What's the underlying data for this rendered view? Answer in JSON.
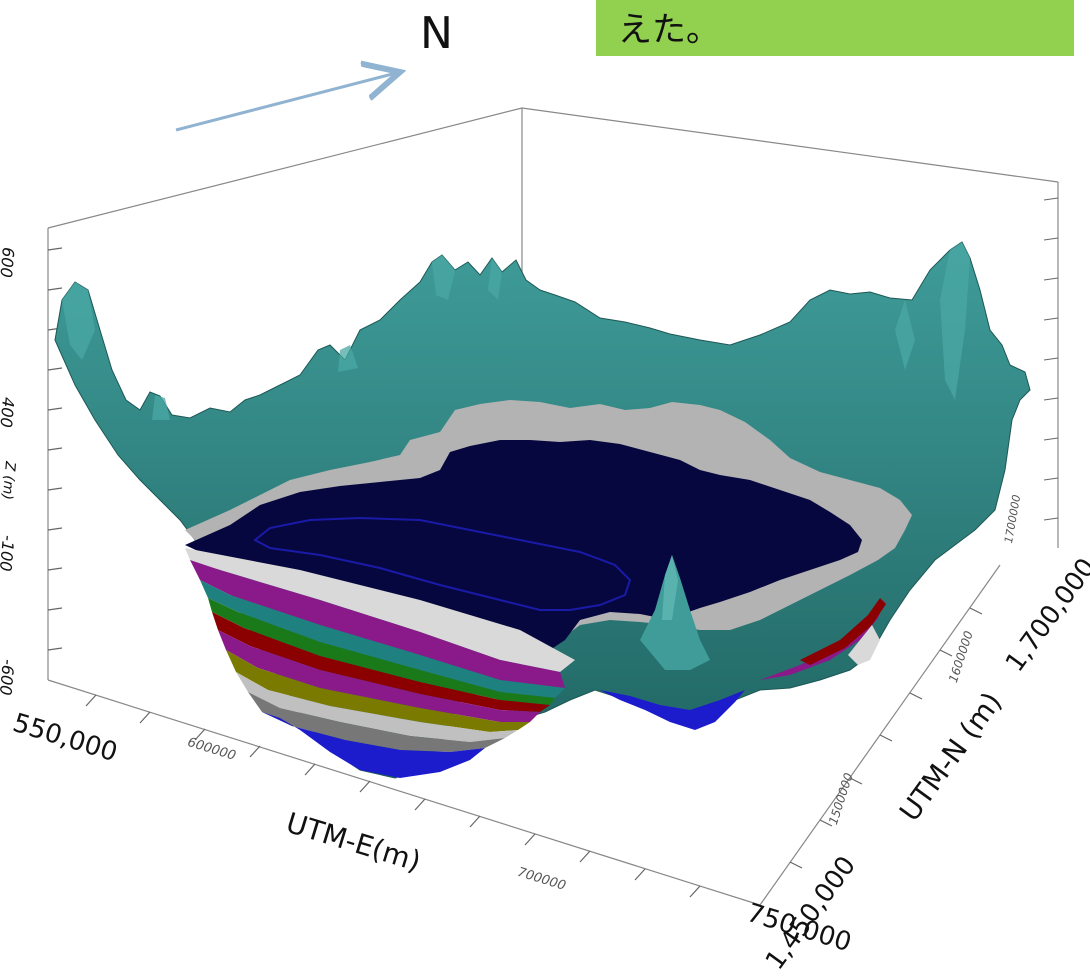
{
  "slide": {
    "caption_fragment": "えた。",
    "north_label": "N"
  },
  "axes": {
    "x_title": "UTM-E(m)",
    "y_title": "UTM-N (m)",
    "z_title": "Z (m)",
    "x_ticks_big": [
      "550,000",
      "750,000"
    ],
    "x_ticks_small": [
      "600000",
      "700000"
    ],
    "y_ticks_big": [
      "1,450,000",
      "1,700,000"
    ],
    "y_ticks_small": [
      "1500000",
      "1600000",
      "1700000"
    ],
    "z_ticks": [
      "600",
      "400",
      "-100",
      "-600"
    ]
  },
  "colors": {
    "callout_fill": "#92d050",
    "arrow": "#8fb3d0",
    "terrain": "#2c7a78",
    "terrain_dark": "#1d5856",
    "basin_top": "#07073f",
    "exposed_gray": "#b0b0b0",
    "layers": [
      "#d6d6d6",
      "#8a1a8a",
      "#1f8080",
      "#1a7a1a",
      "#8b0000",
      "#8a1a8a",
      "#7a7a00",
      "#c0c0c0",
      "#777777",
      "#1c1ccc"
    ]
  }
}
